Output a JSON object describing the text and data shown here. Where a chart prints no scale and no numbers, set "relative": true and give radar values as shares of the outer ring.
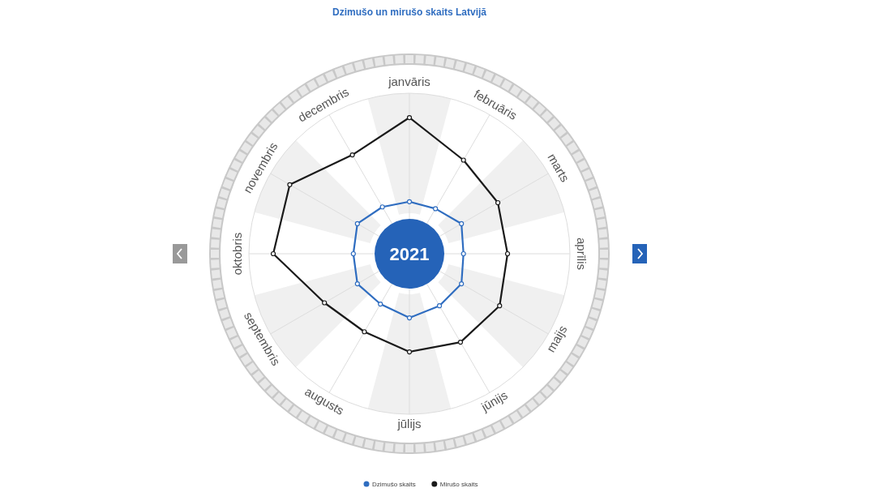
{
  "chart_data": {
    "type": "radar",
    "title": "Dzimušo un mirušo skaits Latvijā",
    "categories": [
      "janvāris",
      "februāris",
      "marts",
      "aprīlis",
      "maijs",
      "jūnijs",
      "jūlijs",
      "augusts",
      "septembris",
      "oktobris",
      "novembris",
      "decembris"
    ],
    "relative": true,
    "series": [
      {
        "name": "Dzimušo skaits",
        "color": "#2f6dc0",
        "values": [
          0.26,
          0.26,
          0.3,
          0.27,
          0.3,
          0.3,
          0.32,
          0.29,
          0.3,
          0.28,
          0.3,
          0.27
        ]
      },
      {
        "name": "Mirušo skaits",
        "color": "#1a1a1a",
        "values": [
          0.68,
          0.54,
          0.51,
          0.49,
          0.52,
          0.51,
          0.49,
          0.45,
          0.49,
          0.68,
          0.69,
          0.57
        ]
      }
    ],
    "annotations": [
      "2021"
    ],
    "grid": true,
    "legend": "bottom",
    "marker": "circle"
  }
}
